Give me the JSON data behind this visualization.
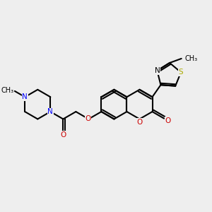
{
  "bg_color": "#eeeeee",
  "bond_color": "#000000",
  "bond_width": 1.5,
  "C_color": "#000000",
  "N_color": "#0000ff",
  "O_color": "#cc0000",
  "S_color": "#aaaa00",
  "font_size": 7.5,
  "fig_size": [
    3.0,
    3.0
  ],
  "dpi": 100,
  "xlim": [
    0,
    12
  ],
  "ylim": [
    0,
    12
  ]
}
